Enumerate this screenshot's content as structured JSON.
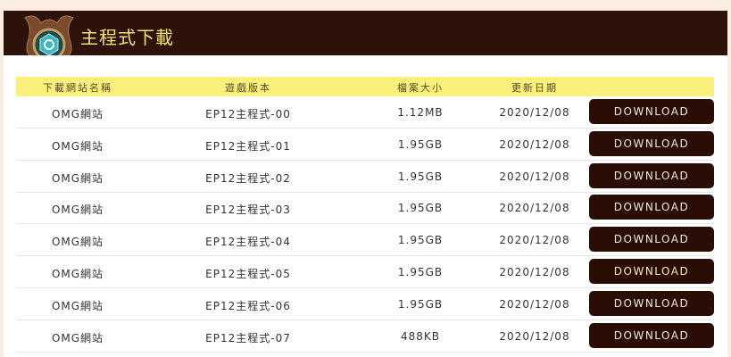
{
  "header": {
    "title": "主程式下載",
    "icon": "gear-emblem-icon"
  },
  "table": {
    "columns": [
      "下載網站名稱",
      "遊戲版本",
      "檔案大小",
      "更新日期",
      ""
    ],
    "rows": [
      {
        "site": "OMG網站",
        "version": "EP12主程式-00",
        "size": "1.12MB",
        "date": "2020/12/08",
        "button": "DOWNLOAD"
      },
      {
        "site": "OMG網站",
        "version": "EP12主程式-01",
        "size": "1.95GB",
        "date": "2020/12/08",
        "button": "DOWNLOAD"
      },
      {
        "site": "OMG網站",
        "version": "EP12主程式-02",
        "size": "1.95GB",
        "date": "2020/12/08",
        "button": "DOWNLOAD"
      },
      {
        "site": "OMG網站",
        "version": "EP12主程式-03",
        "size": "1.95GB",
        "date": "2020/12/08",
        "button": "DOWNLOAD"
      },
      {
        "site": "OMG網站",
        "version": "EP12主程式-04",
        "size": "1.95GB",
        "date": "2020/12/08",
        "button": "DOWNLOAD"
      },
      {
        "site": "OMG網站",
        "version": "EP12主程式-05",
        "size": "1.95GB",
        "date": "2020/12/08",
        "button": "DOWNLOAD"
      },
      {
        "site": "OMG網站",
        "version": "EP12主程式-06",
        "size": "1.95GB",
        "date": "2020/12/08",
        "button": "DOWNLOAD"
      },
      {
        "site": "OMG網站",
        "version": "EP12主程式-07",
        "size": "488KB",
        "date": "2020/12/08",
        "button": "DOWNLOAD"
      }
    ]
  },
  "colors": {
    "header_bg": "#2d1209",
    "title": "#f5e27a",
    "table_header_bg": "#f9f17b",
    "button_bg": "#2a0e06"
  }
}
